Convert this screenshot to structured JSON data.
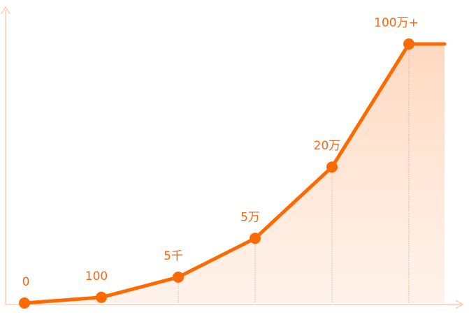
{
  "chart_data": {
    "type": "area",
    "title": "",
    "xlabel": "",
    "ylabel": "",
    "grid": false,
    "legend": "none",
    "colors": {
      "line": "#ff6a00",
      "fill": "#ffd9c2",
      "axis": "#f9cdb3",
      "label": "#f26a14"
    },
    "points": [
      {
        "label": "0",
        "value": 0
      },
      {
        "label": "100",
        "value": 2.2
      },
      {
        "label": "5千",
        "value": 10
      },
      {
        "label": "5万",
        "value": 25
      },
      {
        "label": "20万",
        "value": 52.5
      },
      {
        "label": "100万+",
        "value": 100
      }
    ],
    "tail_value": 100,
    "ylim": [
      0,
      100
    ]
  }
}
